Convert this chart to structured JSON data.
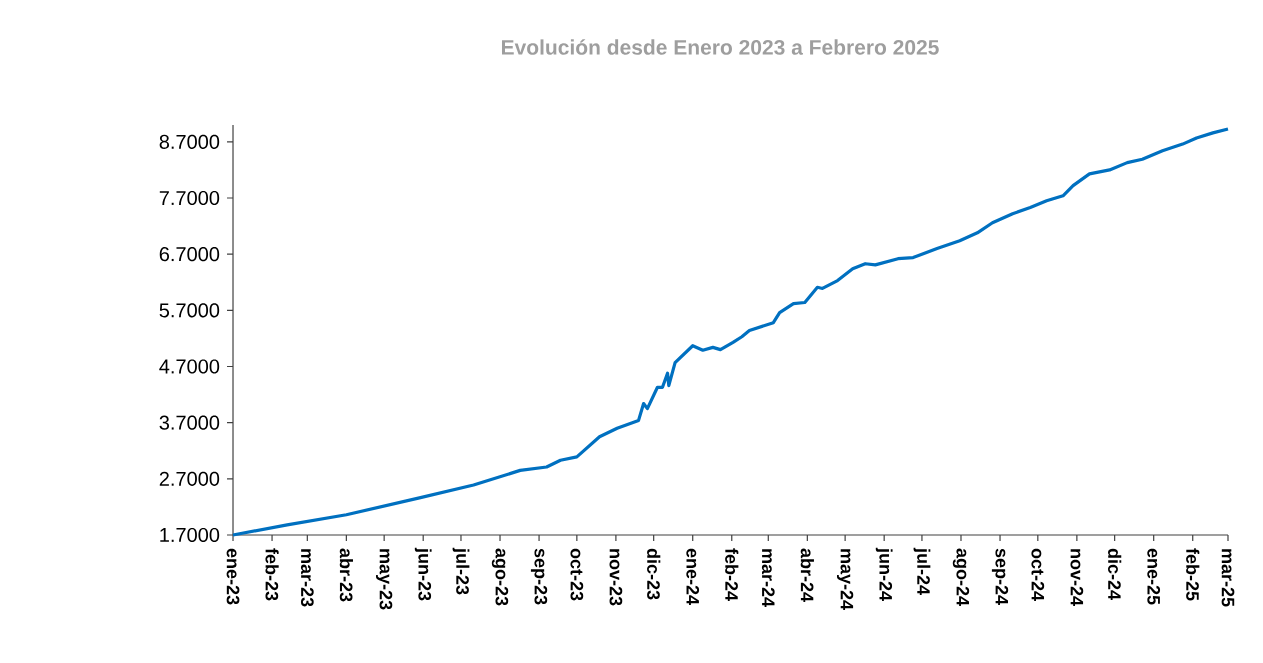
{
  "chart_data": {
    "type": "line",
    "title": "Evolución desde Enero 2023 a Febrero 2025",
    "x": [
      "2023-01-01",
      "2023-02-13",
      "2023-04-01",
      "2023-05-29",
      "2023-07-11",
      "2023-08-17",
      "2023-09-07",
      "2023-09-18",
      "2023-10-01",
      "2023-10-19",
      "2023-11-02",
      "2023-11-19",
      "2023-11-23",
      "2023-11-26",
      "2023-12-04",
      "2023-12-08",
      "2023-12-12",
      "2023-12-13",
      "2023-12-18",
      "2024-01-01",
      "2024-01-09",
      "2024-01-17",
      "2024-01-23",
      "2024-02-02",
      "2024-02-09",
      "2024-02-15",
      "2024-03-05",
      "2024-03-10",
      "2024-03-21",
      "2024-03-30",
      "2024-04-09",
      "2024-04-13",
      "2024-04-25",
      "2024-05-07",
      "2024-05-17",
      "2024-05-25",
      "2024-06-12",
      "2024-06-24",
      "2024-07-13",
      "2024-07-31",
      "2024-08-14",
      "2024-08-26",
      "2024-09-11",
      "2024-09-25",
      "2024-10-08",
      "2024-10-21",
      "2024-10-29",
      "2024-11-11",
      "2024-11-27",
      "2024-12-11",
      "2024-12-23",
      "2025-01-08",
      "2025-01-24",
      "2025-02-04",
      "2025-02-17",
      "2025-03-01"
    ],
    "series": [
      {
        "color": "#0070c0",
        "values": [
          1.7,
          1.88,
          2.06,
          2.36,
          2.59,
          2.85,
          2.91,
          3.03,
          3.09,
          3.45,
          3.6,
          3.74,
          4.04,
          3.95,
          4.33,
          4.33,
          4.58,
          4.36,
          4.77,
          5.07,
          4.99,
          5.04,
          5.0,
          5.13,
          5.23,
          5.34,
          5.48,
          5.66,
          5.82,
          5.84,
          6.11,
          6.09,
          6.23,
          6.44,
          6.53,
          6.51,
          6.62,
          6.64,
          6.8,
          6.94,
          7.08,
          7.26,
          7.42,
          7.53,
          7.65,
          7.74,
          7.92,
          8.13,
          8.2,
          8.33,
          8.39,
          8.54,
          8.66,
          8.77,
          8.86,
          8.93
        ]
      }
    ],
    "xlim": [
      "2023-01-01",
      "2025-03-01"
    ],
    "ylim": [
      1.7,
      9.0
    ],
    "yticks": [
      {
        "value": 1.7,
        "label": "1.7000"
      },
      {
        "value": 2.7,
        "label": "2.7000"
      },
      {
        "value": 3.7,
        "label": "3.7000"
      },
      {
        "value": 4.7,
        "label": "4.7000"
      },
      {
        "value": 5.7,
        "label": "5.7000"
      },
      {
        "value": 6.7,
        "label": "6.7000"
      },
      {
        "value": 7.7,
        "label": "7.7000"
      },
      {
        "value": 8.7,
        "label": "8.7000"
      }
    ],
    "xticks": [
      {
        "value": "2023-01-01",
        "label": "ene-23"
      },
      {
        "value": "2023-02-01",
        "label": "feb-23"
      },
      {
        "value": "2023-03-01",
        "label": "mar-23"
      },
      {
        "value": "2023-04-01",
        "label": "abr-23"
      },
      {
        "value": "2023-05-01",
        "label": "may-23"
      },
      {
        "value": "2023-06-01",
        "label": "jun-23"
      },
      {
        "value": "2023-07-01",
        "label": "jul-23"
      },
      {
        "value": "2023-08-01",
        "label": "ago-23"
      },
      {
        "value": "2023-09-01",
        "label": "sep-23"
      },
      {
        "value": "2023-10-01",
        "label": "oct-23"
      },
      {
        "value": "2023-11-01",
        "label": "nov-23"
      },
      {
        "value": "2023-12-01",
        "label": "dic-23"
      },
      {
        "value": "2024-01-01",
        "label": "ene-24"
      },
      {
        "value": "2024-02-01",
        "label": "feb-24"
      },
      {
        "value": "2024-03-01",
        "label": "mar-24"
      },
      {
        "value": "2024-04-01",
        "label": "abr-24"
      },
      {
        "value": "2024-05-01",
        "label": "may-24"
      },
      {
        "value": "2024-06-01",
        "label": "jun-24"
      },
      {
        "value": "2024-07-01",
        "label": "jul-24"
      },
      {
        "value": "2024-08-01",
        "label": "ago-24"
      },
      {
        "value": "2024-09-01",
        "label": "sep-24"
      },
      {
        "value": "2024-10-01",
        "label": "oct-24"
      },
      {
        "value": "2024-11-01",
        "label": "nov-24"
      },
      {
        "value": "2024-12-01",
        "label": "dic-24"
      },
      {
        "value": "2025-01-01",
        "label": "ene-25"
      },
      {
        "value": "2025-02-01",
        "label": "feb-25"
      },
      {
        "value": "2025-03-01",
        "label": "mar-25"
      }
    ]
  }
}
